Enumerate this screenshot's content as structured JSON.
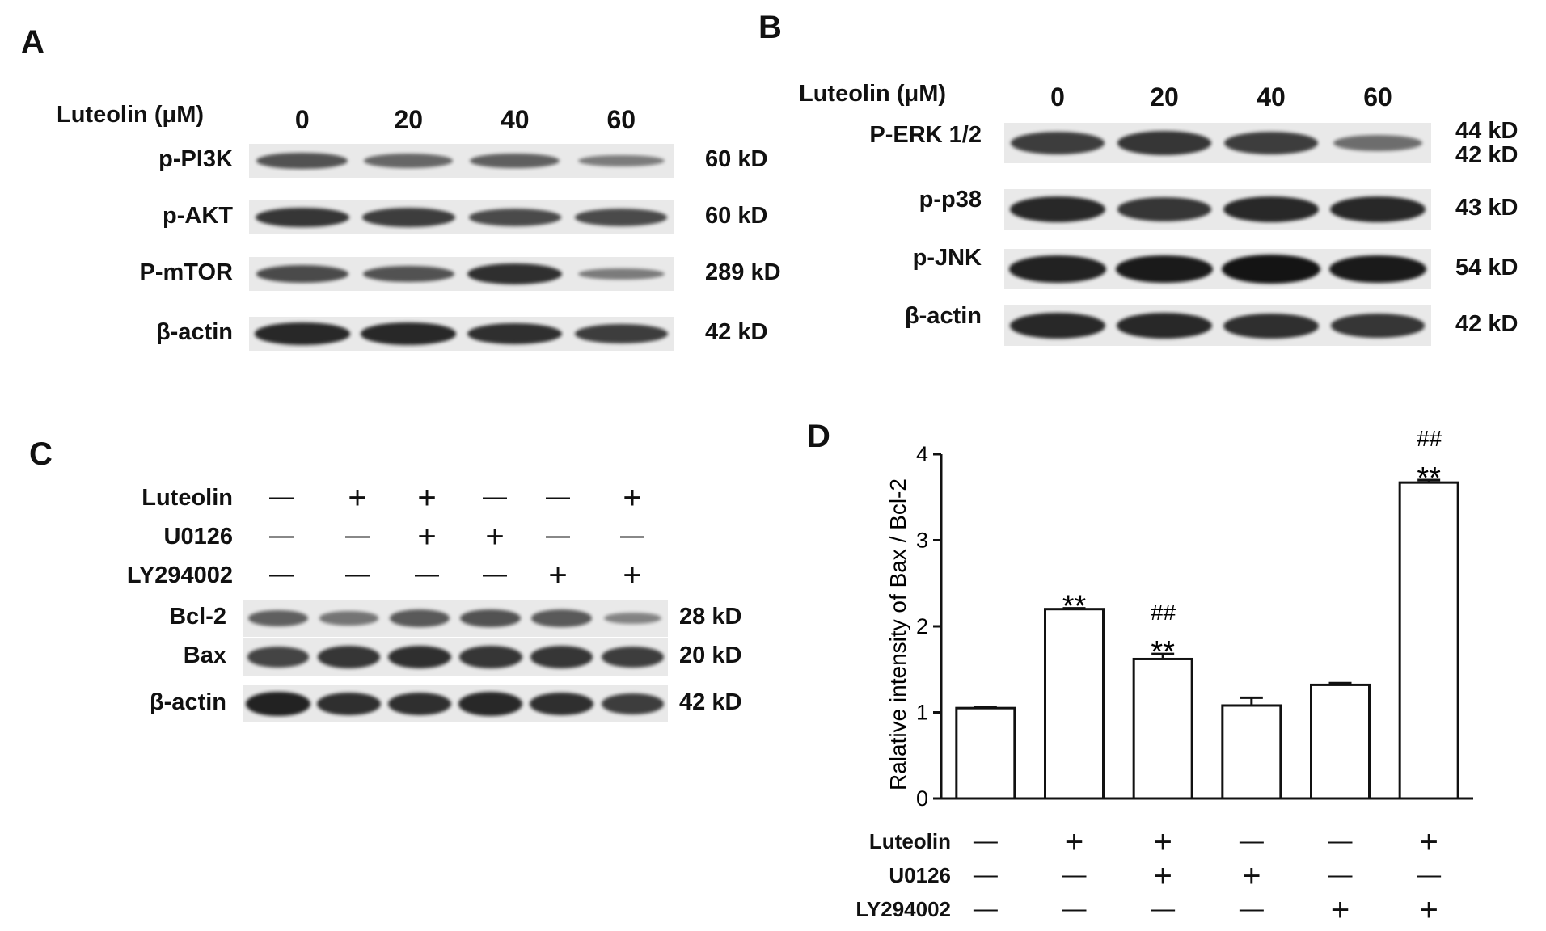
{
  "panelA": {
    "letter": "A",
    "header_label": "Luteolin (μM)",
    "doses": [
      "0",
      "20",
      "40",
      "60"
    ],
    "rows": [
      {
        "name": "p-PI3K",
        "kd": "60 kD",
        "bands": [
          0.55,
          0.4,
          0.45,
          0.25
        ]
      },
      {
        "name": "p-AKT",
        "kd": "60 kD",
        "bands": [
          0.75,
          0.7,
          0.6,
          0.6
        ]
      },
      {
        "name": "P-mTOR",
        "kd": "289 kD",
        "bands": [
          0.6,
          0.55,
          0.8,
          0.25
        ]
      },
      {
        "name": "β-actin",
        "kd": "42 kD",
        "bands": [
          0.85,
          0.85,
          0.8,
          0.7
        ]
      }
    ]
  },
  "panelB": {
    "letter": "B",
    "header_label": "Luteolin (μM)",
    "doses": [
      "0",
      "20",
      "40",
      "60"
    ],
    "rows": [
      {
        "name": "P-ERK 1/2",
        "kd": "44 kD",
        "kd2": "42 kD",
        "bands": [
          0.7,
          0.75,
          0.7,
          0.35
        ]
      },
      {
        "name": "p-p38",
        "kd": "43 kD",
        "bands": [
          0.85,
          0.75,
          0.85,
          0.85
        ]
      },
      {
        "name": "p-JNK",
        "kd": "54 kD",
        "bands": [
          0.9,
          0.95,
          1.0,
          0.95
        ]
      },
      {
        "name": "β-actin",
        "kd": "42 kD",
        "bands": [
          0.85,
          0.85,
          0.8,
          0.75
        ]
      }
    ]
  },
  "panelC": {
    "letter": "C",
    "treatments": [
      {
        "name": "Luteolin",
        "signs": [
          "—",
          "+",
          "+",
          "—",
          "—",
          "+"
        ]
      },
      {
        "name": "U0126",
        "signs": [
          "—",
          "—",
          "+",
          "+",
          "—",
          "—"
        ]
      },
      {
        "name": "LY294002",
        "signs": [
          "—",
          "—",
          "—",
          "—",
          "+",
          "+"
        ]
      }
    ],
    "rows": [
      {
        "name": "Bcl-2",
        "kd": "28 kD",
        "bands": [
          0.45,
          0.3,
          0.5,
          0.55,
          0.5,
          0.2
        ]
      },
      {
        "name": "Bax",
        "kd": "20 kD",
        "bands": [
          0.65,
          0.75,
          0.8,
          0.75,
          0.75,
          0.7
        ]
      },
      {
        "name": "β-actin",
        "kd": "42 kD",
        "bands": [
          0.9,
          0.8,
          0.8,
          0.85,
          0.8,
          0.7
        ]
      }
    ]
  },
  "panelD": {
    "letter": "D",
    "chart_data": {
      "type": "bar",
      "ylabel": "Ralative  intensity of Bax / Bcl-2",
      "ylim": [
        0,
        4
      ],
      "yticks": [
        "0",
        "1",
        "2",
        "3",
        "4"
      ],
      "values": [
        1.05,
        2.2,
        1.62,
        1.08,
        1.32,
        3.67
      ],
      "errors": [
        0.01,
        0.01,
        0.06,
        0.09,
        0.02,
        0.03
      ],
      "annotations": [
        {
          "bar": 1,
          "lines": [
            "**"
          ]
        },
        {
          "bar": 2,
          "lines": [
            "##",
            "**"
          ]
        },
        {
          "bar": 5,
          "lines": [
            "##",
            "**"
          ]
        }
      ],
      "treatments": [
        {
          "name": "Luteolin",
          "signs": [
            "—",
            "+",
            "+",
            "—",
            "—",
            "+"
          ]
        },
        {
          "name": "U0126",
          "signs": [
            "—",
            "—",
            "+",
            "+",
            "—",
            "—"
          ]
        },
        {
          "name": "LY294002",
          "signs": [
            "—",
            "—",
            "—",
            "—",
            "+",
            "+"
          ]
        }
      ]
    }
  }
}
